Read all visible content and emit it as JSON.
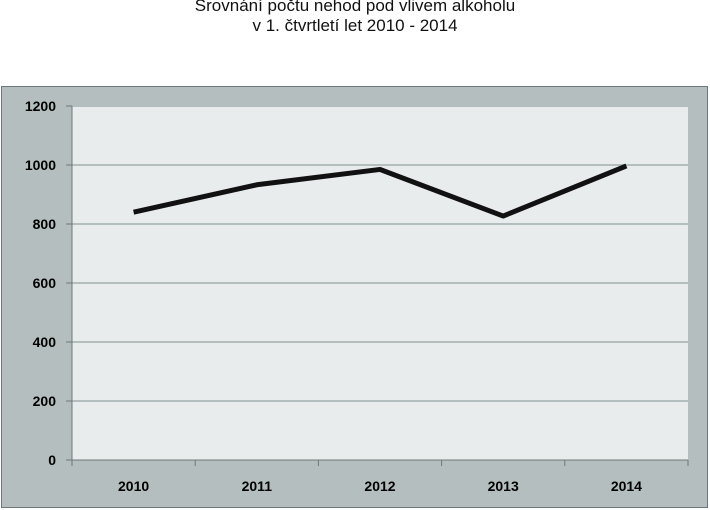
{
  "chart_data": {
    "type": "line",
    "title": [
      "Srovnání počtu nehod pod vlivem alkoholu",
      "v 1. čtvrtletí let 2010 - 2014"
    ],
    "categories": [
      "2010",
      "2011",
      "2012",
      "2013",
      "2014"
    ],
    "series": [
      {
        "values": [
          840,
          933,
          985,
          827,
          997
        ],
        "color": "#111111"
      }
    ],
    "ylim": [
      0,
      1200
    ],
    "yticks": [
      0,
      200,
      400,
      600,
      800,
      1000,
      1200
    ],
    "ytick_labels": [
      "0",
      "200",
      "400",
      "600",
      "800",
      "1000",
      "1200"
    ],
    "grid": true,
    "legend": "none",
    "colors": {
      "plot_background": "#e8ecec",
      "frame_background": "#b4bebe",
      "gridline": "#b4bebe",
      "line": "#111111"
    }
  }
}
